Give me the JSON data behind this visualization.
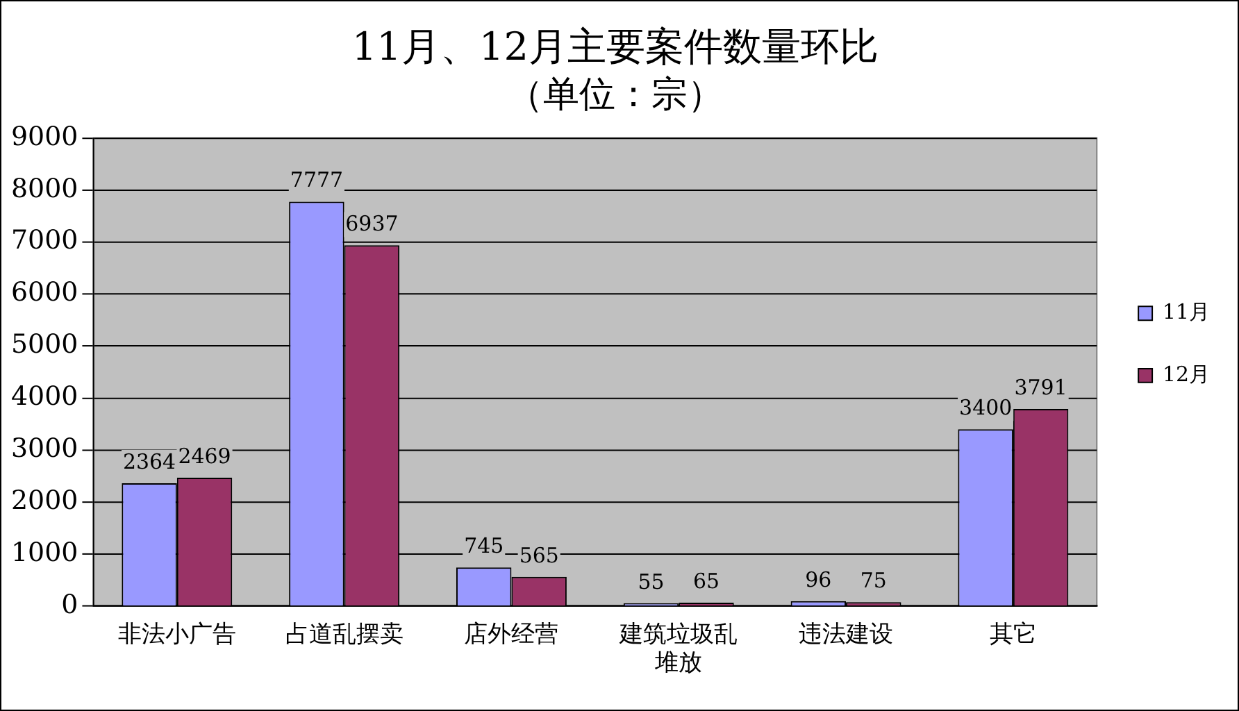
{
  "chart_data": {
    "type": "bar",
    "title": "11月、12月主要案件数量环比",
    "subtitle": "（单位：宗）",
    "categories": [
      "非法小广告",
      "占道乱摆卖",
      "店外经营",
      "建筑垃圾乱堆放",
      "违法建设",
      "其它"
    ],
    "series": [
      {
        "name": "11月",
        "color": "#9999ff",
        "values": [
          2364,
          7777,
          745,
          55,
          96,
          3400
        ]
      },
      {
        "name": "12月",
        "color": "#993366",
        "values": [
          2469,
          6937,
          565,
          65,
          75,
          3791
        ]
      }
    ],
    "ylim": [
      0,
      9000
    ],
    "yticks": [
      0,
      1000,
      2000,
      3000,
      4000,
      5000,
      6000,
      7000,
      8000,
      9000
    ],
    "grid": "y",
    "legend": "right",
    "data_labels": true
  }
}
